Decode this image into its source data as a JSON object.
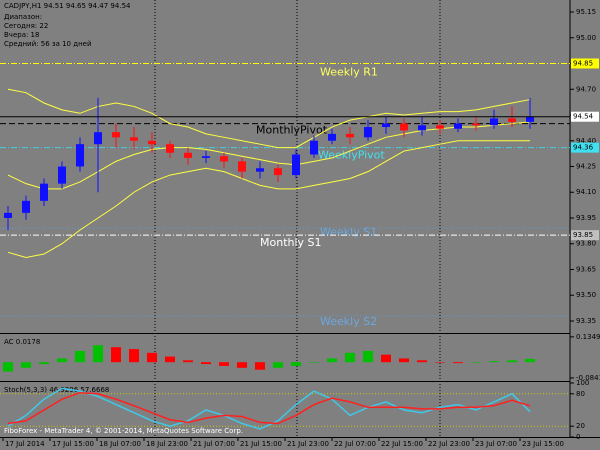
{
  "header": {
    "symbol_line": "CADJPY,H1 94.51 94.65 94.47 94.54",
    "range_lines": [
      "Диапазон:",
      "Сегодня: 22",
      "Вчера: 18",
      "Средний: 56 за 10 дней"
    ]
  },
  "chart_data": [
    {
      "type": "candlestick",
      "open": [
        93.95,
        93.98,
        94.05,
        94.15,
        94.25,
        94.38,
        94.45,
        94.42,
        94.4,
        94.38,
        94.33,
        94.3,
        94.31,
        94.28,
        94.22,
        94.24,
        94.2,
        94.32,
        94.4,
        94.44,
        94.42,
        94.48,
        94.5,
        94.46,
        94.49,
        94.47,
        94.5,
        94.49,
        94.53,
        94.51
      ],
      "high": [
        94.02,
        94.08,
        94.18,
        94.28,
        94.42,
        94.65,
        94.5,
        94.48,
        94.45,
        94.4,
        94.36,
        94.34,
        94.33,
        94.3,
        94.28,
        94.26,
        94.35,
        94.43,
        94.47,
        94.48,
        94.52,
        94.54,
        94.53,
        94.54,
        94.52,
        94.53,
        94.54,
        94.58,
        94.6,
        94.65
      ],
      "low": [
        93.88,
        93.94,
        94.02,
        94.12,
        94.22,
        94.1,
        94.36,
        94.35,
        94.33,
        94.3,
        94.26,
        94.27,
        94.24,
        94.18,
        94.18,
        94.16,
        94.18,
        94.3,
        94.38,
        94.38,
        94.4,
        94.44,
        94.42,
        94.43,
        94.44,
        94.45,
        94.46,
        94.47,
        94.48,
        94.47
      ],
      "close": [
        93.98,
        94.05,
        94.15,
        94.25,
        94.38,
        94.45,
        94.42,
        94.4,
        94.38,
        94.33,
        94.3,
        94.31,
        94.28,
        94.22,
        94.24,
        94.2,
        94.32,
        94.4,
        94.44,
        94.42,
        94.48,
        94.5,
        94.46,
        94.49,
        94.47,
        94.5,
        94.49,
        94.53,
        94.51,
        94.54
      ],
      "up_color": "#1010ff",
      "down_color": "#ff1010",
      "bands": [
        {
          "color": "#ffff40",
          "values": [
            94.7,
            94.68,
            94.62,
            94.58,
            94.56,
            94.6,
            94.62,
            94.6,
            94.56,
            94.5,
            94.48,
            94.44,
            94.42,
            94.4,
            94.38,
            94.36,
            94.36,
            94.42,
            94.48,
            94.52,
            94.54,
            94.56,
            94.55,
            94.56,
            94.57,
            94.57,
            94.58,
            94.6,
            94.62,
            94.64
          ]
        },
        {
          "color": "#ffff40",
          "values": [
            94.2,
            94.15,
            94.12,
            94.12,
            94.16,
            94.22,
            94.28,
            94.32,
            94.35,
            94.36,
            94.36,
            94.35,
            94.33,
            94.31,
            94.29,
            94.27,
            94.26,
            94.28,
            94.3,
            94.34,
            94.38,
            94.42,
            94.44,
            94.46,
            94.47,
            94.48,
            94.48,
            94.49,
            94.5,
            94.51
          ]
        },
        {
          "color": "#ffff40",
          "values": [
            93.75,
            93.72,
            93.74,
            93.8,
            93.88,
            93.95,
            94.02,
            94.1,
            94.16,
            94.2,
            94.22,
            94.24,
            94.22,
            94.18,
            94.14,
            94.12,
            94.12,
            94.14,
            94.16,
            94.18,
            94.22,
            94.28,
            94.34,
            94.36,
            94.38,
            94.4,
            94.4,
            94.4,
            94.4,
            94.4
          ]
        }
      ],
      "levels": [
        {
          "label": "Weekly R1",
          "value": 94.85,
          "color": "#ffff00",
          "text_color": "#ffff60"
        },
        {
          "label": "MonthlyPivot",
          "value": 94.5,
          "color": "#000000",
          "text_color": "#000000"
        },
        {
          "label": "WeeklyPivot",
          "value": 94.36,
          "color": "#40d0e0",
          "text_color": "#40e0f0"
        },
        {
          "label": "Weekly S1",
          "value": 93.89,
          "color": "#5b9bd5",
          "text_color": "#6aa8e0"
        },
        {
          "label": "Monthly S1",
          "value": 93.85,
          "color": "#ffffff",
          "text_color": "#ffffff"
        },
        {
          "label": "Weekly S2",
          "value": 93.38,
          "color": "#5b9bd5",
          "text_color": "#6aa8e0"
        }
      ],
      "price_labels": [
        {
          "value": 94.85,
          "label": "94.85",
          "color": "#ffff00"
        },
        {
          "value": 94.54,
          "label": "94.54",
          "color": "#ffffff"
        },
        {
          "value": 94.36,
          "label": "94.36",
          "color": "#40e0f0"
        },
        {
          "value": 93.85,
          "label": "93.85",
          "color": "#c0c0c0"
        }
      ],
      "ylim": [
        93.28,
        95.22
      ],
      "yticks": [
        95.15,
        {
          "value": 95,
          "label": "95.00"
        },
        94.85,
        {
          "value": 94.7,
          "label": "94.70"
        },
        94.55,
        {
          "value": 94.4,
          "label": "94.40"
        },
        94.25,
        {
          "value": 94.1,
          "label": "94.10"
        },
        93.95,
        {
          "value": 93.8,
          "label": "93.80"
        },
        93.65,
        {
          "value": 93.5,
          "label": "93.50"
        },
        93.35
      ]
    },
    {
      "type": "bar",
      "title": "AC 0.0178",
      "values": [
        -0.05,
        -0.03,
        -0.01,
        0.02,
        0.06,
        0.09,
        0.08,
        0.07,
        0.05,
        0.03,
        0.01,
        -0.01,
        -0.02,
        -0.03,
        -0.04,
        -0.03,
        -0.02,
        0.0,
        0.02,
        0.05,
        0.06,
        0.04,
        0.02,
        0.01,
        0.0,
        -0.005,
        0.0,
        0.005,
        0.01,
        0.0178
      ],
      "up_color": "#00c000",
      "down_color": "#ff0000",
      "ylim": [
        -0.095,
        0.145
      ],
      "yticks": [
        0.1349,
        -0.0841
      ]
    },
    {
      "type": "line",
      "title": "Stoch(5,3,3) 46.9296 57.6668",
      "series": [
        {
          "color": "#40c8e8",
          "values": [
            20,
            40,
            70,
            90,
            85,
            75,
            60,
            45,
            30,
            20,
            30,
            50,
            40,
            25,
            15,
            30,
            60,
            85,
            70,
            40,
            55,
            65,
            50,
            45,
            55,
            60,
            50,
            65,
            80,
            46.9296
          ]
        },
        {
          "color": "#ff2020",
          "values": [
            25,
            30,
            50,
            70,
            82,
            80,
            70,
            58,
            45,
            32,
            27,
            35,
            40,
            38,
            27,
            25,
            40,
            60,
            72,
            65,
            55,
            55,
            55,
            52,
            52,
            55,
            55,
            58,
            68,
            57.6668
          ]
        }
      ],
      "ylim": [
        0,
        100
      ],
      "yticks": [
        100,
        80,
        20,
        0
      ]
    }
  ],
  "time_labels": [
    "17 Jul 2014",
    "17 Jul 15:00",
    "18 Jul 07:00",
    "18 Jul 23:00",
    "21 Jul 07:00",
    "21 Jul 15:00",
    "21 Jul 23:00",
    "22 Jul 07:00",
    "22 Jul 15:00",
    "22 Jul 23:00",
    "23 Jul 07:00",
    "23 Jul 15:00"
  ],
  "footer": "FiboForex - MetaTrader 4, © 2001-2014, MetaQuotes Software Corp."
}
